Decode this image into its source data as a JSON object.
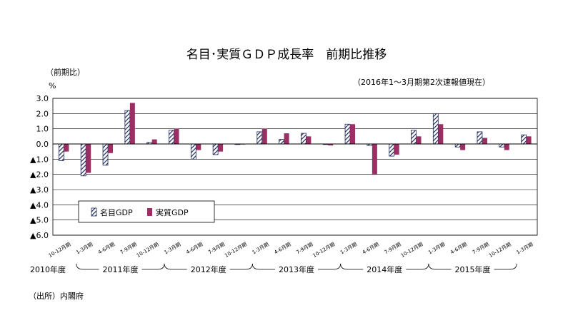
{
  "title": "名目･実質ＧＤＰ成長率　前期比推移",
  "unit_label": "（前期比）",
  "percent_label": "%",
  "subtitle": "（2016年1～3月期第2次速報値現在）",
  "source": "（出所）内閣府",
  "colors": {
    "nominal_stroke": "#1f2a5a",
    "real": "#9a2f63",
    "axis": "#000000"
  },
  "chart_data": {
    "type": "bar",
    "title": "名目･実質ＧＤＰ成長率　前期比推移",
    "ylabel": "%",
    "ylim": [
      -6.0,
      3.0
    ],
    "yticks": [
      3.0,
      2.0,
      1.0,
      0.0,
      -1.0,
      -2.0,
      -3.0,
      -4.0,
      -5.0,
      -6.0
    ],
    "ytick_labels": [
      "3.0",
      "2.0",
      "1.0",
      "0.0",
      "▲1.0",
      "▲2.0",
      "▲3.0",
      "▲4.0",
      "▲5.0",
      "▲6.0"
    ],
    "grid": true,
    "legend_position": "bottom-left",
    "categories": [
      "10-12月期",
      "1-3月期",
      "4-6月期",
      "7-9月期",
      "10-12月期",
      "1-3月期",
      "4-6月期",
      "7-9月期",
      "10-12月期",
      "1-3月期",
      "4-6月期",
      "7-9月期",
      "10-12月期",
      "1-3月期",
      "4-6月期",
      "7-9月期",
      "10-12月期",
      "1-3月期",
      "4-6月期",
      "7-9月期",
      "10-12月期",
      "1-3月期"
    ],
    "fiscal_years": [
      {
        "label": "2010年度",
        "start": 0,
        "end": 1
      },
      {
        "label": "2011年度",
        "start": 1,
        "end": 5
      },
      {
        "label": "2012年度",
        "start": 5,
        "end": 9
      },
      {
        "label": "2013年度",
        "start": 9,
        "end": 13
      },
      {
        "label": "2014年度",
        "start": 13,
        "end": 17
      },
      {
        "label": "2015年度",
        "start": 17,
        "end": 21
      }
    ],
    "series": [
      {
        "name": "名目GDP",
        "pattern": "hatched",
        "values": [
          -1.1,
          -2.1,
          -1.4,
          2.2,
          0.1,
          0.9,
          -1.0,
          -0.7,
          0.0,
          0.8,
          0.3,
          0.7,
          0.0,
          1.3,
          -0.1,
          -0.8,
          0.9,
          2.0,
          -0.2,
          0.8,
          -0.2,
          0.6
        ]
      },
      {
        "name": "実質GDP",
        "pattern": "solid",
        "values": [
          -0.5,
          -1.9,
          -0.6,
          2.7,
          0.3,
          1.0,
          -0.4,
          -0.5,
          0.0,
          1.0,
          0.7,
          0.5,
          -0.1,
          1.3,
          -2.0,
          -0.7,
          0.5,
          1.3,
          -0.4,
          0.4,
          -0.4,
          0.5
        ]
      }
    ]
  }
}
